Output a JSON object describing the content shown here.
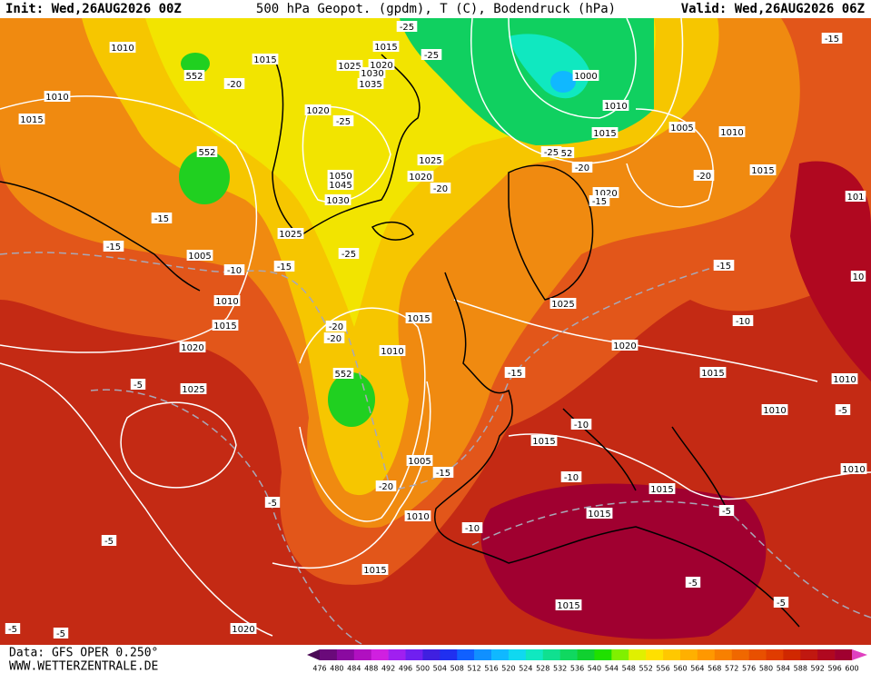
{
  "header": {
    "init": "Init: Wed,26AUG2026 00Z",
    "title": "500 hPa Geopot. (gpdm), T (C), Bodendruck (hPa)",
    "valid": "Valid: Wed,26AUG2026 06Z"
  },
  "footer": {
    "data": "Data: GFS OPER 0.250°",
    "site": "WWW.WETTERZENTRALE.DE"
  },
  "legend": {
    "ticks": [
      476,
      480,
      484,
      488,
      492,
      496,
      500,
      504,
      508,
      512,
      516,
      520,
      524,
      528,
      532,
      536,
      540,
      544,
      548,
      552,
      556,
      560,
      564,
      568,
      572,
      576,
      580,
      584,
      588,
      592,
      596,
      600
    ],
    "colors": [
      "#4a0a55",
      "#6a0a7a",
      "#8a0aa0",
      "#b010c0",
      "#d020e0",
      "#a020f0",
      "#7020f0",
      "#4020e0",
      "#2030f0",
      "#1060ff",
      "#1090ff",
      "#10b8ff",
      "#10d8f0",
      "#10e8c0",
      "#10e090",
      "#10d860",
      "#10d030",
      "#20e000",
      "#80f000",
      "#e0f000",
      "#ffe000",
      "#ffc800",
      "#ffb000",
      "#ff9800",
      "#f88000",
      "#f06800",
      "#e85000",
      "#e03c00",
      "#d02800",
      "#c01810",
      "#b00820",
      "#a00030",
      "#e040c0"
    ]
  },
  "map_labels": [
    "1010",
    "1015",
    "552",
    "-20",
    "1010",
    "1015",
    "552",
    "-15",
    "-15",
    "1005",
    "-10",
    "-15",
    "1010",
    "1015",
    "1020",
    "1025",
    "-5",
    "-5",
    "-5",
    "-5",
    "-5",
    "1020",
    "1015",
    "1010",
    "-20",
    "1005",
    "-15",
    "-10",
    "552",
    "1010",
    "-20",
    "-20",
    "1015",
    "1025",
    "-25",
    "1020",
    "-25",
    "1050",
    "1045",
    "1030",
    "1020",
    "-20",
    "1025",
    "1025",
    "1030",
    "1035",
    "1020",
    "1015",
    "-25",
    "-25",
    "1000",
    "1010",
    "1015",
    "-25",
    "52",
    "-20",
    "1020",
    "-15",
    "1005",
    "1010",
    "-20",
    "1015",
    "1025",
    "1020",
    "-15",
    "1015",
    "-15",
    "-10",
    "-10",
    "1015",
    "-10",
    "1015",
    "1015",
    "-5",
    "-5",
    "-5",
    "1015",
    "1010",
    "1010",
    "-5",
    "1010",
    "-15",
    "101",
    "10"
  ]
}
